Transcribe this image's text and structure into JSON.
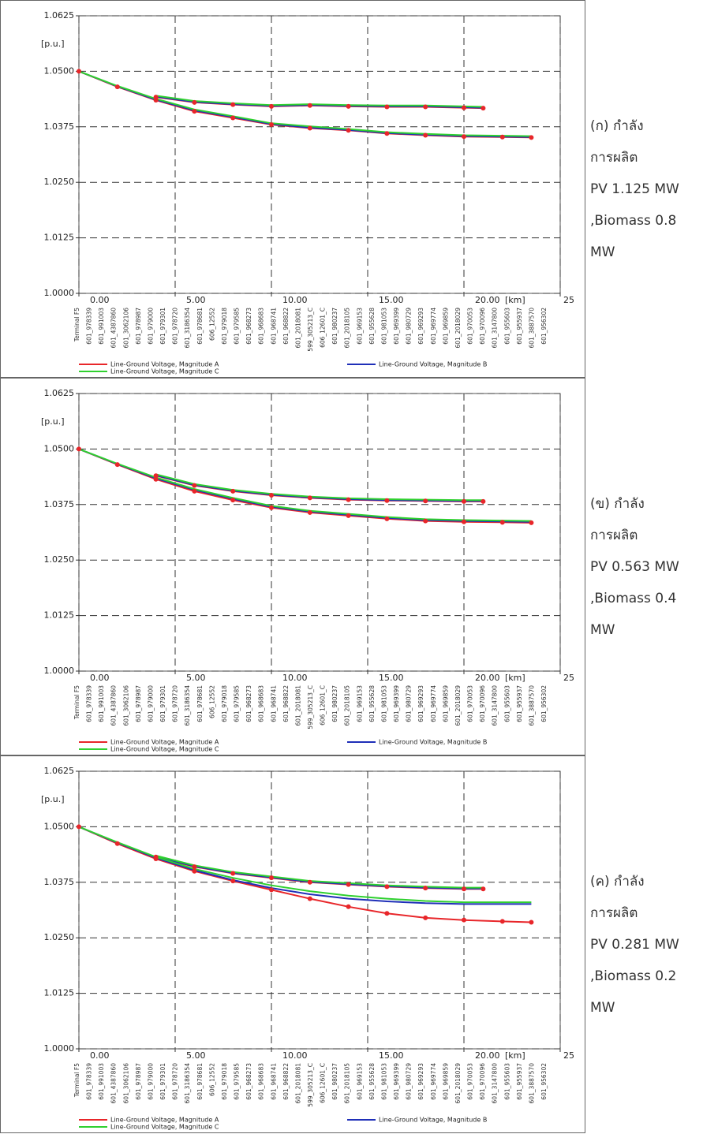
{
  "chart_data": [
    {
      "type": "line",
      "caption": [
        "(ก) กำลัง",
        "การผลิต",
        "PV 1.125 MW",
        ",Biomass 0.8",
        "MW"
      ],
      "y_unit": "[p.u.]",
      "x_unit": "[km]",
      "ylim": [
        1.0,
        1.0625
      ],
      "yticks": [
        {
          "value": 1.0,
          "label": "1.0000"
        },
        1.0125,
        {
          "value": 1.025,
          "label": "1.0250"
        },
        1.0375,
        {
          "value": 1.05,
          "label": "1.0500"
        },
        1.0625
      ],
      "xlim": [
        0,
        25
      ],
      "xticks": [
        {
          "value": 0,
          "label": "0.00"
        },
        {
          "value": 5,
          "label": "5.00"
        },
        {
          "value": 10,
          "label": "10.00"
        },
        {
          "value": 15,
          "label": "15.00"
        },
        {
          "value": 20,
          "label": "20.00"
        },
        25
      ],
      "grid": true,
      "x": [
        0,
        2,
        4,
        6,
        8,
        10,
        12,
        14,
        16,
        18,
        20,
        22,
        23.5,
        null,
        4,
        6,
        8,
        10,
        12,
        14,
        16,
        18,
        20,
        21
      ],
      "series": [
        {
          "name": "Line-Ground Voltage, Magnitude A",
          "color": "#e8262a",
          "markers": true,
          "values": [
            1.05,
            1.0465,
            1.0435,
            1.041,
            1.0395,
            1.038,
            1.0372,
            1.0367,
            1.036,
            1.0356,
            1.0353,
            1.0352,
            1.0351,
            null,
            1.0442,
            1.043,
            1.0425,
            1.0421,
            1.0423,
            1.0421,
            1.042,
            1.042,
            1.0418,
            1.0417
          ]
        },
        {
          "name": "Line-Ground Voltage, Magnitude B",
          "color": "#1f2fb8",
          "values": [
            1.05,
            1.0466,
            1.0436,
            1.0412,
            1.0397,
            1.0381,
            1.0373,
            1.0368,
            1.0361,
            1.0357,
            1.0354,
            1.0353,
            1.0352,
            null,
            1.0443,
            1.0431,
            1.0426,
            1.0422,
            1.0424,
            1.0422,
            1.0421,
            1.0421,
            1.0419,
            1.0418
          ]
        },
        {
          "name": "Line-Ground Voltage, Magnitude C",
          "color": "#2fd02f",
          "values": [
            1.05,
            1.0467,
            1.0438,
            1.0414,
            1.0399,
            1.0383,
            1.0376,
            1.037,
            1.0363,
            1.0359,
            1.0356,
            1.0355,
            1.0354,
            null,
            1.0445,
            1.0433,
            1.0428,
            1.0424,
            1.0426,
            1.0424,
            1.0423,
            1.0423,
            1.0421,
            1.042
          ]
        }
      ],
      "bus_labels": [
        "Terminal F5",
        "601_978339",
        "601_991003",
        "601_4387860",
        "601_3062106",
        "601_978987",
        "601_979000",
        "601_979301",
        "601_978720",
        "601_3186354",
        "601_978681",
        "606_12552",
        "601_979018",
        "601_979585",
        "601_968273",
        "601_968683",
        "601_968741",
        "601_968822",
        "601_2018081",
        "599_305213_C",
        "606_12601_C",
        "601_980237",
        "601_2018105",
        "601_969153",
        "601_955628",
        "601_981053",
        "601_969399",
        "601_980729",
        "601_969293",
        "601_969774",
        "601_969859",
        "601_2018029",
        "601_970053",
        "601_970096",
        "601_3147800",
        "601_955603",
        "601_955937",
        "601_3887570",
        "601_956302"
      ]
    },
    {
      "type": "line",
      "caption": [
        "(ข) กำลัง",
        "การผลิต",
        "PV 0.563 MW",
        ",Biomass 0.4",
        "MW"
      ],
      "y_unit": "[p.u.]",
      "x_unit": "[km]",
      "ylim": [
        1.0,
        1.0625
      ],
      "yticks": [
        {
          "value": 1.0,
          "label": "1.0000"
        },
        1.0125,
        {
          "value": 1.025,
          "label": "1.0250"
        },
        1.0375,
        {
          "value": 1.05,
          "label": "1.0500"
        },
        1.0625
      ],
      "xlim": [
        0,
        25
      ],
      "xticks": [
        {
          "value": 0,
          "label": "0.00"
        },
        {
          "value": 5,
          "label": "5.00"
        },
        {
          "value": 10,
          "label": "10.00"
        },
        {
          "value": 15,
          "label": "15.00"
        },
        {
          "value": 20,
          "label": "20.00"
        },
        25
      ],
      "grid": true,
      "x": [
        0,
        2,
        4,
        6,
        8,
        10,
        12,
        14,
        16,
        18,
        20,
        22,
        23.5,
        null,
        4,
        6,
        8,
        10,
        12,
        14,
        16,
        18,
        20,
        21
      ],
      "series": [
        {
          "name": "Line-Ground Voltage, Magnitude A",
          "color": "#e8262a",
          "markers": true,
          "values": [
            1.05,
            1.0465,
            1.0432,
            1.0405,
            1.0385,
            1.0368,
            1.0357,
            1.035,
            1.0343,
            1.0338,
            1.0336,
            1.0335,
            1.0334,
            null,
            1.044,
            1.0418,
            1.0405,
            1.0396,
            1.039,
            1.0386,
            1.0384,
            1.0383,
            1.0382,
            1.0382
          ]
        },
        {
          "name": "Line-Ground Voltage, Magnitude B",
          "color": "#1f2fb8",
          "values": [
            1.05,
            1.0466,
            1.0434,
            1.0408,
            1.0388,
            1.037,
            1.0359,
            1.0352,
            1.0345,
            1.034,
            1.0338,
            1.0337,
            1.0336,
            null,
            1.0441,
            1.0419,
            1.0406,
            1.0397,
            1.0391,
            1.0387,
            1.0385,
            1.0384,
            1.0383,
            1.0383
          ]
        },
        {
          "name": "Line-Ground Voltage, Magnitude C",
          "color": "#2fd02f",
          "values": [
            1.05,
            1.0467,
            1.0436,
            1.041,
            1.039,
            1.0372,
            1.0361,
            1.0354,
            1.0347,
            1.0342,
            1.034,
            1.0339,
            1.0338,
            null,
            1.0443,
            1.0421,
            1.0408,
            1.0399,
            1.0393,
            1.0389,
            1.0387,
            1.0386,
            1.0385,
            1.0385
          ]
        }
      ],
      "bus_labels": [
        "Terminal F5",
        "601_978339",
        "601_991003",
        "601_4387860",
        "601_3062106",
        "601_978987",
        "601_979000",
        "601_979301",
        "601_978720",
        "601_3186354",
        "601_978681",
        "606_12552",
        "601_979018",
        "601_979585",
        "601_968273",
        "601_968683",
        "601_968741",
        "601_968822",
        "601_2018081",
        "599_305213_C",
        "606_12601_C",
        "601_980237",
        "601_2018105",
        "601_969153",
        "601_955628",
        "601_981053",
        "601_969399",
        "601_980729",
        "601_969293",
        "601_969774",
        "601_969859",
        "601_2018029",
        "601_970053",
        "601_970096",
        "601_3147800",
        "601_955603",
        "601_955937",
        "601_3887570",
        "601_956302"
      ]
    },
    {
      "type": "line",
      "caption": [
        "(ค) กำลัง",
        "การผลิต",
        "PV 0.281 MW",
        ",Biomass 0.2",
        "MW"
      ],
      "y_unit": "[p.u.]",
      "x_unit": "[km]",
      "ylim": [
        1.0,
        1.0625
      ],
      "yticks": [
        {
          "value": 1.0,
          "label": "1.0000"
        },
        1.0125,
        {
          "value": 1.025,
          "label": "1.0250"
        },
        1.0375,
        {
          "value": 1.05,
          "label": "1.0500"
        },
        1.0625
      ],
      "xlim": [
        0,
        25
      ],
      "xticks": [
        {
          "value": 0,
          "label": "0.00"
        },
        {
          "value": 5,
          "label": "5.00"
        },
        {
          "value": 10,
          "label": "10.00"
        },
        {
          "value": 15,
          "label": "15.00"
        },
        {
          "value": 20,
          "label": "20.00"
        },
        25
      ],
      "grid": true,
      "x": [
        0,
        2,
        4,
        6,
        8,
        10,
        12,
        14,
        16,
        18,
        20,
        22,
        23.5,
        null,
        4,
        6,
        8,
        10,
        12,
        14,
        16,
        18,
        20,
        21
      ],
      "series": [
        {
          "name": "Line-Ground Voltage, Magnitude A",
          "color": "#e8262a",
          "markers": true,
          "values": [
            1.05,
            1.0462,
            1.0428,
            1.04,
            1.0378,
            1.0358,
            1.0338,
            1.032,
            1.0305,
            1.0295,
            1.029,
            1.0287,
            1.0285,
            null,
            1.0432,
            1.041,
            1.0395,
            1.0385,
            1.0375,
            1.037,
            1.0365,
            1.0362,
            1.036,
            1.036
          ]
        },
        {
          "name": "Line-Ground Voltage, Magnitude B",
          "color": "#1f2fb8",
          "values": [
            1.05,
            1.0464,
            1.043,
            1.0402,
            1.038,
            1.0362,
            1.0348,
            1.0338,
            1.0332,
            1.0328,
            1.0326,
            1.0326,
            1.0326,
            null,
            1.0433,
            1.0411,
            1.0396,
            1.0386,
            1.0376,
            1.0371,
            1.0366,
            1.0363,
            1.0361,
            1.0361
          ]
        },
        {
          "name": "Line-Ground Voltage, Magnitude C",
          "color": "#2fd02f",
          "values": [
            1.05,
            1.0465,
            1.0432,
            1.0405,
            1.0385,
            1.0368,
            1.0355,
            1.0345,
            1.0338,
            1.0333,
            1.033,
            1.033,
            1.033,
            null,
            1.0435,
            1.0413,
            1.0398,
            1.0388,
            1.0378,
            1.0373,
            1.0368,
            1.0365,
            1.0363,
            1.0363
          ]
        }
      ],
      "bus_labels": [
        "Terminal F5",
        "601_978339",
        "601_991003",
        "601_4387860",
        "601_3062106",
        "601_978987",
        "601_979000",
        "601_979301",
        "601_978720",
        "601_3186354",
        "601_978681",
        "606_12552",
        "601_979018",
        "601_979585",
        "601_968273",
        "601_968683",
        "601_968741",
        "601_968822",
        "601_2018081",
        "599_305213_C",
        "606_12601_C",
        "601_980237",
        "601_2018105",
        "601_969153",
        "601_955628",
        "601_981053",
        "601_969399",
        "601_980729",
        "601_969293",
        "601_969774",
        "601_969859",
        "601_2018029",
        "601_970053",
        "601_970096",
        "601_3147800",
        "601_955603",
        "601_955937",
        "601_3887570",
        "601_956302"
      ]
    }
  ]
}
